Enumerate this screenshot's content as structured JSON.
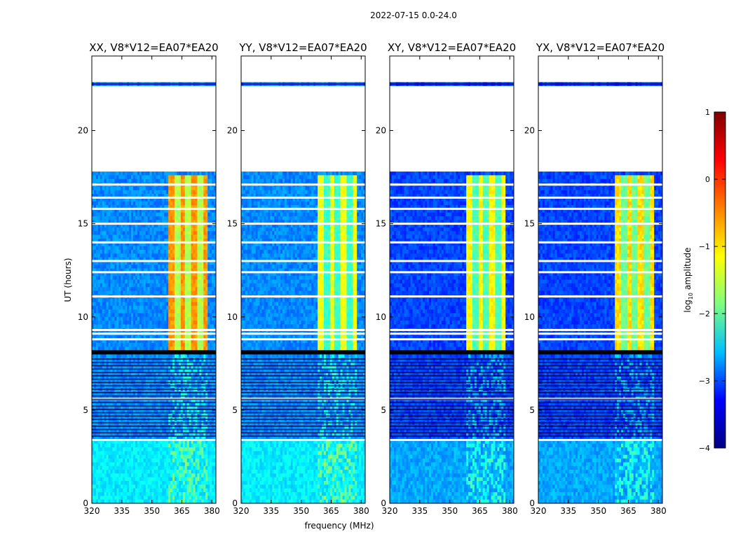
{
  "figure_title": "2022-07-15 0.0-24.0",
  "chart_data": {
    "type": "heatmap",
    "title": "2022-07-15 0.0-24.0",
    "xlabel": "frequency (MHz)",
    "ylabel": "UT (hours)",
    "xlim": [
      320,
      382
    ],
    "ylim": [
      0,
      24
    ],
    "xticks": [
      320,
      335,
      350,
      365,
      380
    ],
    "yticks": [
      0,
      5,
      10,
      15,
      20
    ],
    "panels": [
      {
        "title": "XX, V8*V12=EA07*EA20",
        "band_level": 0.62,
        "base_level": 0.22
      },
      {
        "title": "YY, V8*V12=EA07*EA20",
        "band_level": 0.5,
        "base_level": 0.22
      },
      {
        "title": "XY, V8*V12=EA07*EA20",
        "band_level": 0.52,
        "base_level": 0.15
      },
      {
        "title": "YX, V8*V12=EA07*EA20",
        "band_level": 0.55,
        "base_level": 0.15
      }
    ],
    "data_gaps_hours": [
      [
        17.7,
        22.4
      ],
      [
        22.6,
        24.0
      ]
    ],
    "colorbar": {
      "label": "log10 amplitude",
      "label_prefix": "log",
      "label_sub": "10",
      "label_suffix": " amplitude",
      "range": [
        -4,
        1
      ],
      "ticks": [
        "1",
        "0",
        "−1",
        "−2",
        "−3",
        "−4"
      ],
      "colors": [
        "#000080",
        "#0000ff",
        "#00bfff",
        "#7fff7f",
        "#ffff00",
        "#ff7f00",
        "#ff0000",
        "#800000"
      ]
    }
  }
}
